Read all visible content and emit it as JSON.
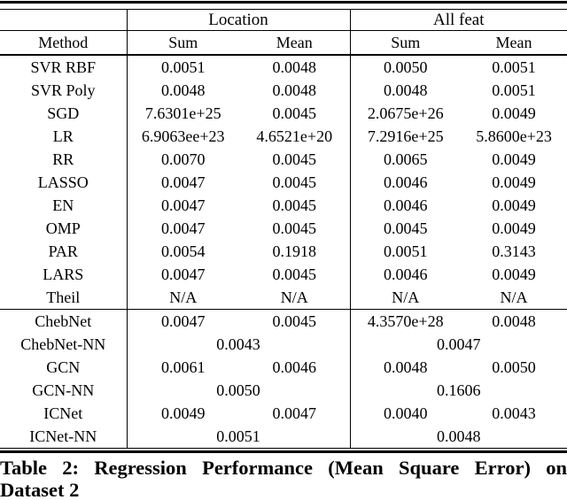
{
  "table": {
    "group_headers": [
      {
        "label": "Location"
      },
      {
        "label": "All feat"
      }
    ],
    "headers": {
      "method": "Method",
      "sum": "Sum",
      "mean": "Mean"
    },
    "rows": [
      {
        "method": "SVR RBF",
        "cells": [
          {
            "t": "0.0051"
          },
          {
            "t": "0.0048"
          },
          {
            "t": "0.0050"
          },
          {
            "t": "0.0051"
          }
        ]
      },
      {
        "method": "SVR Poly",
        "cells": [
          {
            "t": "0.0048"
          },
          {
            "t": "0.0048"
          },
          {
            "t": "0.0048"
          },
          {
            "t": "0.0051"
          }
        ]
      },
      {
        "method": "SGD",
        "cells": [
          {
            "t": "7.6301e+25"
          },
          {
            "t": "0.0045"
          },
          {
            "t": "2.0675e+26"
          },
          {
            "t": "0.0049"
          }
        ]
      },
      {
        "method": "LR",
        "cells": [
          {
            "t": "6.9063ee+23"
          },
          {
            "t": "4.6521e+20"
          },
          {
            "t": "7.2916e+25"
          },
          {
            "t": "5.8600e+23"
          }
        ]
      },
      {
        "method": "RR",
        "cells": [
          {
            "t": "0.0070"
          },
          {
            "t": "0.0045"
          },
          {
            "t": "0.0065"
          },
          {
            "t": "0.0049"
          }
        ]
      },
      {
        "method": "LASSO",
        "cells": [
          {
            "t": "0.0047"
          },
          {
            "t": "0.0045"
          },
          {
            "t": "0.0046"
          },
          {
            "t": "0.0049"
          }
        ]
      },
      {
        "method": "EN",
        "cells": [
          {
            "t": "0.0047"
          },
          {
            "t": "0.0045"
          },
          {
            "t": "0.0046"
          },
          {
            "t": "0.0049"
          }
        ]
      },
      {
        "method": "OMP",
        "cells": [
          {
            "t": "0.0047"
          },
          {
            "t": "0.0045"
          },
          {
            "t": "0.0045"
          },
          {
            "t": "0.0049"
          }
        ]
      },
      {
        "method": "PAR",
        "cells": [
          {
            "t": "0.0054"
          },
          {
            "t": "0.1918"
          },
          {
            "t": "0.0051"
          },
          {
            "t": "0.3143"
          }
        ]
      },
      {
        "method": "LARS",
        "cells": [
          {
            "t": "0.0047"
          },
          {
            "t": "0.0045"
          },
          {
            "t": "0.0046"
          },
          {
            "t": "0.0049"
          }
        ]
      },
      {
        "method": "Theil",
        "cells": [
          {
            "t": "N/A"
          },
          {
            "t": "N/A"
          },
          {
            "t": "N/A"
          },
          {
            "t": "N/A"
          }
        ],
        "rule_after": true
      },
      {
        "method": "ChebNet",
        "cells": [
          {
            "t": "0.0047"
          },
          {
            "t": "0.0045"
          },
          {
            "t": "4.3570e+28"
          },
          {
            "t": "0.0048"
          }
        ]
      },
      {
        "method": "ChebNet-NN",
        "span_cells": [
          {
            "t": "0.0043",
            "bold": true
          },
          {
            "t": "0.0047"
          }
        ]
      },
      {
        "method": "GCN",
        "cells": [
          {
            "t": "0.0061"
          },
          {
            "t": "0.0046"
          },
          {
            "t": "0.0048"
          },
          {
            "t": "0.0050"
          }
        ]
      },
      {
        "method": "GCN-NN",
        "span_cells": [
          {
            "t": "0.0050"
          },
          {
            "t": "0.1606"
          }
        ]
      },
      {
        "method": "ICNet",
        "cells": [
          {
            "t": "0.0049"
          },
          {
            "t": "0.0047"
          },
          {
            "t": "0.0040",
            "bold": true
          },
          {
            "t": "0.0043"
          }
        ]
      },
      {
        "method": "ICNet-NN",
        "span_cells": [
          {
            "t": "0.0051"
          },
          {
            "t": "0.0048"
          }
        ]
      }
    ]
  },
  "caption": {
    "line1": "Table 2: Regression Performance (Mean Square Error) on",
    "line2": "Dataset 2"
  },
  "colors": {
    "text": "#000000",
    "background": "#ffffff",
    "rule": "#000000"
  }
}
